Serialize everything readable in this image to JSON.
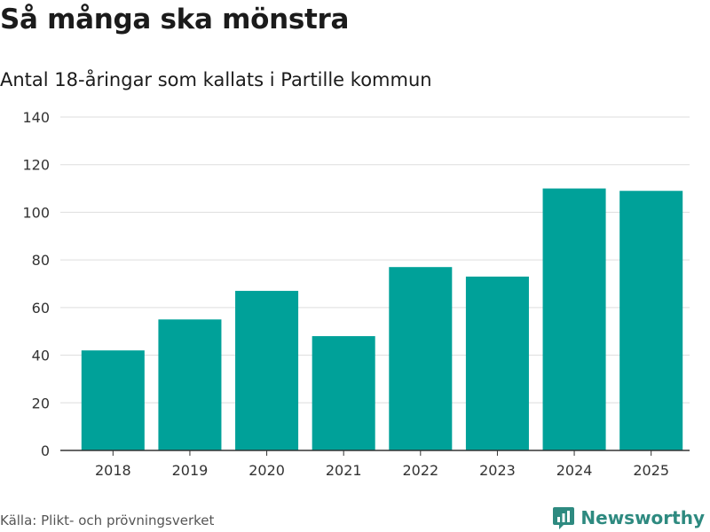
{
  "header": {
    "title": "Så många ska mönstra",
    "subtitle": "Antal 18-åringar som kallats i Partille kommun"
  },
  "footer": {
    "source": "Källa: Plikt- och prövningsverket",
    "brand": "Newsworthy",
    "brand_icon": "newsworthy-logo-icon"
  },
  "colors": {
    "bar": "#00a199",
    "grid": "#dddddd",
    "axis": "#333333",
    "brand": "#2e8a80"
  },
  "chart_data": {
    "type": "bar",
    "title": "Så många ska mönstra",
    "subtitle": "Antal 18-åringar som kallats i Partille kommun",
    "categories": [
      "2018",
      "2019",
      "2020",
      "2021",
      "2022",
      "2023",
      "2024",
      "2025"
    ],
    "values": [
      42,
      55,
      67,
      48,
      77,
      73,
      110,
      109
    ],
    "yticks": [
      "0",
      "20",
      "40",
      "60",
      "80",
      "100",
      "120",
      "140"
    ],
    "ylim": [
      0,
      140
    ],
    "xlabel": "",
    "ylabel": "",
    "grid": true,
    "legend": "none"
  }
}
